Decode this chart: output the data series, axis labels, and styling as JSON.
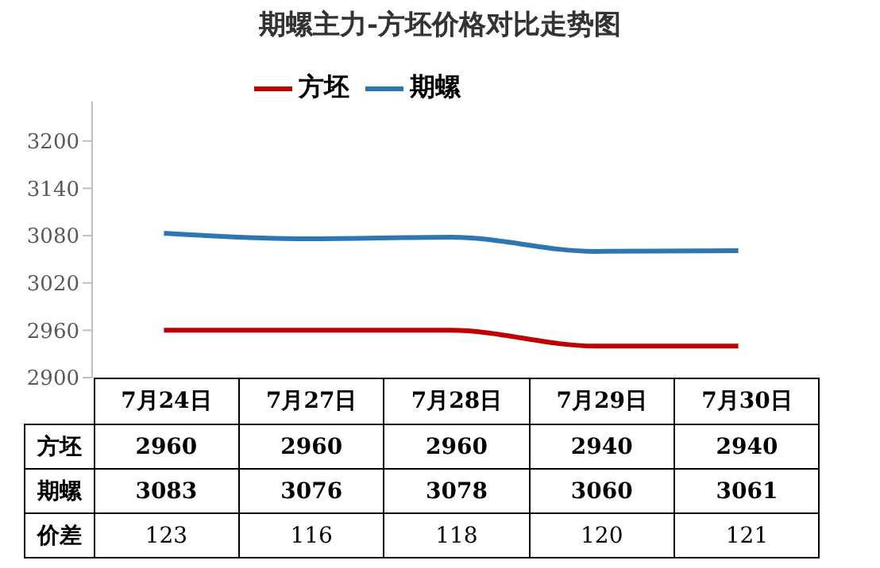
{
  "chart_data": {
    "type": "line",
    "title": "期螺主力-方坯价格对比走势图",
    "categories": [
      "7月24日",
      "7月27日",
      "7月28日",
      "7月29日",
      "7月30日"
    ],
    "series": [
      {
        "name": "方坯",
        "color": "#c00000",
        "values": [
          2960,
          2960,
          2960,
          2940,
          2940
        ]
      },
      {
        "name": "期螺",
        "color": "#2e75b6",
        "values": [
          3083,
          3076,
          3078,
          3060,
          3061
        ]
      }
    ],
    "ylim": [
      2900,
      3250
    ],
    "yticks": [
      2900,
      2960,
      3020,
      3080,
      3140,
      3200
    ],
    "legend": "top",
    "marker": "none",
    "line_style": "solid",
    "data_labels": true,
    "annotations": [
      "价差",
      "123",
      "116",
      "118",
      "120",
      "121"
    ]
  }
}
